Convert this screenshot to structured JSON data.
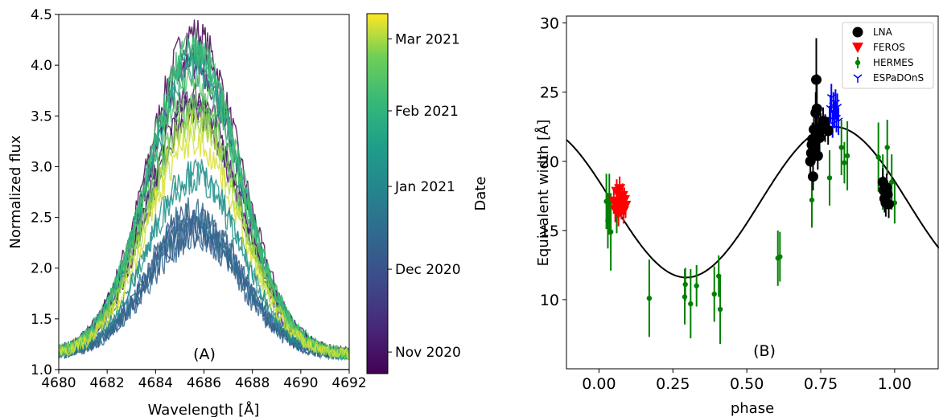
{
  "chart_data": [
    {
      "panel": "A",
      "type": "line",
      "annotation": "(A)",
      "xlabel": "Wavelength [Å]",
      "ylabel": "Normalized flux",
      "xlim": [
        4680,
        4692
      ],
      "ylim": [
        1.0,
        4.5
      ],
      "xticks": [
        4680,
        4682,
        4684,
        4686,
        4688,
        4690,
        4692
      ],
      "yticks": [
        1.0,
        1.5,
        2.0,
        2.5,
        3.0,
        3.5,
        4.0,
        4.5
      ],
      "reference_line": 1.0,
      "colorbar": {
        "label": "Date",
        "colormap": "viridis",
        "ticks": [
          "Nov 2020",
          "Dec 2020",
          "Jan 2021",
          "Feb 2021",
          "Mar 2021"
        ],
        "tick_positions": [
          0.06,
          0.29,
          0.52,
          0.73,
          0.93
        ]
      },
      "series_peaks": [
        {
          "c": 0.0,
          "peak": 4.32
        },
        {
          "c": 0.02,
          "peak": 4.1
        },
        {
          "c": 0.03,
          "peak": 3.7
        },
        {
          "c": 0.05,
          "peak": 3.55
        },
        {
          "c": 0.07,
          "peak": 4.0
        },
        {
          "c": 0.1,
          "peak": 3.6
        },
        {
          "c": 0.3,
          "peak": 2.5
        },
        {
          "c": 0.32,
          "peak": 2.42
        },
        {
          "c": 0.34,
          "peak": 2.35
        },
        {
          "c": 0.36,
          "peak": 2.3
        },
        {
          "c": 0.38,
          "peak": 2.55
        },
        {
          "c": 0.4,
          "peak": 2.45
        },
        {
          "c": 0.55,
          "peak": 2.95
        },
        {
          "c": 0.58,
          "peak": 2.9
        },
        {
          "c": 0.62,
          "peak": 3.95
        },
        {
          "c": 0.66,
          "peak": 4.05
        },
        {
          "c": 0.7,
          "peak": 4.1
        },
        {
          "c": 0.74,
          "peak": 4.15
        },
        {
          "c": 0.78,
          "peak": 4.2
        },
        {
          "c": 0.82,
          "peak": 3.85
        },
        {
          "c": 0.86,
          "peak": 3.6
        },
        {
          "c": 0.9,
          "peak": 3.5
        },
        {
          "c": 0.94,
          "peak": 3.4
        },
        {
          "c": 0.97,
          "peak": 3.25
        }
      ],
      "line_center": 4685.6,
      "line_sigma": 1.9
    },
    {
      "panel": "B",
      "type": "scatter",
      "annotation": "(B)",
      "xlabel": "phase",
      "ylabel": "Equivalent width [Å]",
      "xlim": [
        -0.11,
        1.15
      ],
      "ylim": [
        5,
        30.5
      ],
      "xticks": [
        "0.00",
        "0.25",
        "0.50",
        "0.75",
        "1.00"
      ],
      "yticks": [
        10,
        15,
        20,
        25,
        30
      ],
      "model": {
        "mean": 17.05,
        "amplitude": 5.45,
        "phase_of_max": 0.795
      },
      "legend": {
        "position": "top-right",
        "entries": [
          "LNA",
          "FEROS",
          "HERMES",
          "ESPaDOnS"
        ]
      },
      "series": [
        {
          "name": "LNA",
          "color": "#000000",
          "marker": "circle",
          "points": [
            {
              "x": 0.715,
              "y": 20.0,
              "err": 1.0
            },
            {
              "x": 0.718,
              "y": 20.6,
              "err": 1.0
            },
            {
              "x": 0.72,
              "y": 21.2,
              "err": 1.2
            },
            {
              "x": 0.722,
              "y": 21.6,
              "err": 1.2
            },
            {
              "x": 0.724,
              "y": 18.9,
              "err": 1.0
            },
            {
              "x": 0.727,
              "y": 22.3,
              "err": 1.5
            },
            {
              "x": 0.73,
              "y": 21.0,
              "err": 1.0
            },
            {
              "x": 0.733,
              "y": 23.5,
              "err": 1.5
            },
            {
              "x": 0.735,
              "y": 25.9,
              "err": 3.0
            },
            {
              "x": 0.737,
              "y": 23.8,
              "err": 2.5
            },
            {
              "x": 0.74,
              "y": 20.4,
              "err": 1.0
            },
            {
              "x": 0.743,
              "y": 22.0,
              "err": 1.5
            },
            {
              "x": 0.746,
              "y": 21.7,
              "err": 1.2
            },
            {
              "x": 0.75,
              "y": 22.5,
              "err": 1.0
            },
            {
              "x": 0.758,
              "y": 22.9,
              "err": 1.0
            },
            {
              "x": 0.765,
              "y": 22.4,
              "err": 1.0
            },
            {
              "x": 0.775,
              "y": 22.2,
              "err": 1.0
            },
            {
              "x": 0.96,
              "y": 18.5,
              "err": 1.0
            },
            {
              "x": 0.963,
              "y": 17.9,
              "err": 1.0
            },
            {
              "x": 0.966,
              "y": 17.3,
              "err": 1.0
            },
            {
              "x": 0.97,
              "y": 17.0,
              "err": 1.0
            },
            {
              "x": 0.973,
              "y": 18.1,
              "err": 1.0
            },
            {
              "x": 0.976,
              "y": 17.6,
              "err": 1.0
            },
            {
              "x": 0.98,
              "y": 16.9,
              "err": 1.0
            }
          ]
        },
        {
          "name": "FEROS",
          "color": "#ff0000",
          "marker": "triangle-down",
          "points": [
            {
              "x": 0.05,
              "y": 17.1,
              "err": 0.9
            },
            {
              "x": 0.055,
              "y": 16.5,
              "err": 0.9
            },
            {
              "x": 0.06,
              "y": 17.8,
              "err": 0.9
            },
            {
              "x": 0.063,
              "y": 17.0,
              "err": 0.9
            },
            {
              "x": 0.066,
              "y": 16.2,
              "err": 0.9
            },
            {
              "x": 0.07,
              "y": 18.0,
              "err": 0.9
            },
            {
              "x": 0.073,
              "y": 17.3,
              "err": 0.9
            },
            {
              "x": 0.076,
              "y": 16.7,
              "err": 0.9
            },
            {
              "x": 0.08,
              "y": 17.5,
              "err": 0.9
            },
            {
              "x": 0.083,
              "y": 16.4,
              "err": 0.9
            },
            {
              "x": 0.086,
              "y": 17.2,
              "err": 0.9
            },
            {
              "x": 0.09,
              "y": 16.8,
              "err": 0.9
            }
          ]
        },
        {
          "name": "HERMES",
          "color": "#008000",
          "marker": "circle-small",
          "points": [
            {
              "x": 0.025,
              "y": 17.1,
              "err": 2.0
            },
            {
              "x": 0.03,
              "y": 15.7,
              "err": 2.0
            },
            {
              "x": 0.035,
              "y": 16.9,
              "err": 2.2
            },
            {
              "x": 0.04,
              "y": 14.9,
              "err": 2.8
            },
            {
              "x": 0.06,
              "y": 16.3,
              "err": 1.5
            },
            {
              "x": 0.17,
              "y": 10.1,
              "err": 2.8
            },
            {
              "x": 0.29,
              "y": 10.2,
              "err": 2.0
            },
            {
              "x": 0.292,
              "y": 11.1,
              "err": 1.2
            },
            {
              "x": 0.31,
              "y": 9.7,
              "err": 2.5
            },
            {
              "x": 0.33,
              "y": 11.0,
              "err": 1.5
            },
            {
              "x": 0.39,
              "y": 10.4,
              "err": 2.0
            },
            {
              "x": 0.405,
              "y": 11.7,
              "err": 1.5
            },
            {
              "x": 0.41,
              "y": 9.3,
              "err": 2.5
            },
            {
              "x": 0.605,
              "y": 13.0,
              "err": 2.0
            },
            {
              "x": 0.612,
              "y": 13.1,
              "err": 1.8
            },
            {
              "x": 0.72,
              "y": 17.2,
              "err": 2.0
            },
            {
              "x": 0.78,
              "y": 18.8,
              "err": 2.0
            },
            {
              "x": 0.82,
              "y": 21.0,
              "err": 2.0
            },
            {
              "x": 0.83,
              "y": 19.9,
              "err": 1.5
            },
            {
              "x": 0.84,
              "y": 20.4,
              "err": 2.5
            },
            {
              "x": 0.945,
              "y": 20.3,
              "err": 2.5
            },
            {
              "x": 0.96,
              "y": 18.5,
              "err": 2.0
            },
            {
              "x": 0.975,
              "y": 21.0,
              "err": 2.0
            },
            {
              "x": 0.99,
              "y": 18.5,
              "err": 2.0
            },
            {
              "x": 1.0,
              "y": 17.0,
              "err": 1.5
            }
          ]
        },
        {
          "name": "ESPaDOnS",
          "color": "#0000ff",
          "marker": "tri-down",
          "points": [
            {
              "x": 0.78,
              "y": 23.0,
              "err": 1.0
            },
            {
              "x": 0.783,
              "y": 23.8,
              "err": 1.0
            },
            {
              "x": 0.786,
              "y": 24.6,
              "err": 1.0
            },
            {
              "x": 0.79,
              "y": 22.7,
              "err": 1.0
            },
            {
              "x": 0.793,
              "y": 24.0,
              "err": 1.0
            },
            {
              "x": 0.796,
              "y": 23.4,
              "err": 1.0
            },
            {
              "x": 0.8,
              "y": 24.2,
              "err": 1.0
            },
            {
              "x": 0.803,
              "y": 23.1,
              "err": 1.0
            },
            {
              "x": 0.806,
              "y": 23.9,
              "err": 1.0
            },
            {
              "x": 0.81,
              "y": 22.9,
              "err": 1.0
            }
          ]
        }
      ]
    }
  ]
}
